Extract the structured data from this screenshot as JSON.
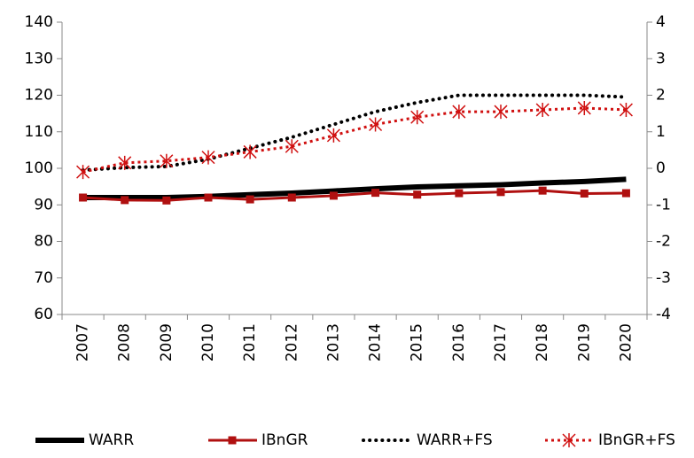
{
  "chart_data": {
    "type": "line",
    "categories": [
      "2007",
      "2008",
      "2009",
      "2010",
      "2011",
      "2012",
      "2013",
      "2014",
      "2015",
      "2016",
      "2017",
      "2018",
      "2019",
      "2020"
    ],
    "series": [
      {
        "name": "WARR",
        "color": "#000000",
        "style": "solid",
        "values": [
          92,
          92,
          92,
          92.3,
          92.8,
          93.2,
          93.8,
          94.4,
          94.9,
          95.2,
          95.5,
          96,
          96.4,
          97
        ]
      },
      {
        "name": "IBnGR",
        "color": "#b01010",
        "style": "square",
        "values": [
          92,
          91.3,
          91.2,
          92,
          91.5,
          92,
          92.5,
          93.3,
          92.8,
          93.2,
          93.5,
          93.9,
          93.1,
          93.2
        ]
      },
      {
        "name": "WARR+FS",
        "color": "#000000",
        "style": "dotted",
        "values": [
          99.5,
          100.2,
          100.5,
          102.5,
          105.5,
          108.5,
          112,
          115.5,
          118,
          120,
          120,
          120,
          120,
          119.5
        ]
      },
      {
        "name": "IBnGR+FS",
        "color": "#d01010",
        "style": "star",
        "values": [
          99,
          101.5,
          102,
          103,
          104.5,
          106,
          109,
          112,
          114,
          115.5,
          115.5,
          116,
          116.5,
          116
        ]
      }
    ],
    "ylim": [
      60,
      140
    ],
    "yticks": [
      60,
      70,
      80,
      90,
      100,
      110,
      120,
      130,
      140
    ],
    "y2lim": [
      -4,
      4
    ],
    "y2ticks": [
      -4,
      -3,
      -2,
      -1,
      0,
      1,
      2,
      3,
      4
    ],
    "legend": "bottom"
  }
}
